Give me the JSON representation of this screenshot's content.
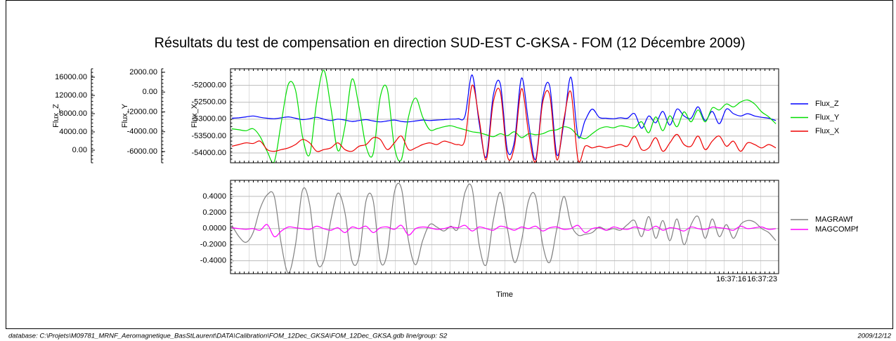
{
  "chart_data": [
    {
      "type": "line",
      "title": "Résultats du test de compensation en direction SUD-EST C-GKSA - FOM (12 Décembre 2009)",
      "series": [
        {
          "name": "Flux_Z",
          "color": "#0000ff",
          "axis_label": "Flux_Z",
          "ylim": [
            -2770,
            17850
          ],
          "yticks": [
            {
              "value": 16000,
              "label": "16000.00"
            },
            {
              "value": 12000,
              "label": "12000.00"
            },
            {
              "value": 8000,
              "label": "8000.00"
            },
            {
              "value": 4000,
              "label": "4000.00"
            },
            {
              "value": 0,
              "label": "0.00"
            }
          ],
          "values": [
            7000,
            7100,
            7300,
            7500,
            7200,
            7000,
            6900,
            7100,
            7300,
            7000,
            6700,
            6900,
            7200,
            6800,
            6500,
            6800,
            6600,
            6300,
            6500,
            6700,
            6400,
            6200,
            6400,
            6600,
            6300,
            6200,
            6400,
            6600,
            6500,
            6600,
            6700,
            6800,
            6900,
            7500,
            16500,
            6000,
            -1500,
            12000,
            14500,
            0,
            2000,
            15800,
            6000,
            -2000,
            11500,
            14000,
            -1000,
            6000,
            16000,
            3000,
            6500,
            9000,
            7200,
            7000,
            6900,
            7100,
            7000,
            8000,
            4800,
            7500,
            6000,
            8500,
            5500,
            9000,
            7500,
            7000,
            9500,
            6500,
            8500,
            5800,
            9000,
            8000,
            7500,
            8000,
            7500,
            7200,
            7000,
            6500
          ]
        },
        {
          "name": "Flux_Y",
          "color": "#00dd00",
          "axis_label": "Flux_Y",
          "ylim": [
            -7130,
            2350
          ],
          "yticks": [
            {
              "value": 2000,
              "label": "2000.00"
            },
            {
              "value": 0,
              "label": "0.00"
            },
            {
              "value": -2000,
              "label": "-2000.00"
            },
            {
              "value": -4000,
              "label": "-4000.00"
            },
            {
              "value": -6000,
              "label": "-6000.00"
            }
          ],
          "values": [
            -3700,
            -3800,
            -3900,
            -3700,
            -4500,
            -6000,
            -7000,
            -3000,
            800,
            200,
            -4500,
            -6300,
            -1000,
            2200,
            -1500,
            -5900,
            -3500,
            1300,
            -1500,
            -5500,
            -6200,
            -500,
            300,
            -5500,
            -6800,
            -2500,
            -600,
            -2500,
            -3800,
            -3700,
            -3500,
            -3400,
            -3600,
            -3800,
            -4000,
            -4100,
            -4300,
            -4500,
            -4200,
            -4400,
            -4000,
            -4600,
            -4200,
            -4300,
            -4200,
            -3900,
            -3800,
            -3500,
            -3700,
            -4400,
            -4700,
            -4200,
            -3700,
            -3500,
            -3600,
            -3400,
            -3500,
            -3600,
            -3000,
            -4100,
            -2500,
            -3900,
            -2400,
            -3500,
            -2000,
            -3000,
            -1800,
            -3000,
            -1600,
            -1800,
            -1200,
            -1500,
            -1000,
            -800,
            -1200,
            -2000,
            -2500,
            -3200
          ]
        },
        {
          "name": "Flux_X",
          "color": "#ee0000",
          "axis_label": "Flux_X",
          "ylim": [
            -54290,
            -51510
          ],
          "grid": true,
          "yticks": [
            {
              "value": -52000,
              "label": "-52000.00"
            },
            {
              "value": -52500,
              "label": "-52500.00"
            },
            {
              "value": -53000,
              "label": "-53000.00"
            },
            {
              "value": -53500,
              "label": "-53500.00"
            },
            {
              "value": -54000,
              "label": "-54000.00"
            }
          ],
          "values": [
            -53800,
            -53750,
            -53700,
            -53720,
            -53650,
            -53900,
            -53950,
            -53900,
            -53850,
            -53750,
            -53600,
            -53700,
            -53950,
            -53900,
            -53850,
            -53700,
            -53900,
            -53950,
            -53800,
            -53750,
            -53550,
            -53600,
            -53900,
            -53700,
            -53500,
            -53900,
            -53850,
            -53750,
            -53700,
            -53750,
            -53650,
            -53700,
            -53750,
            -53600,
            -52000,
            -53000,
            -54200,
            -52500,
            -52200,
            -54100,
            -53800,
            -52100,
            -53400,
            -54250,
            -52500,
            -52300,
            -54200,
            -53000,
            -52200,
            -54200,
            -53800,
            -53850,
            -53800,
            -53850,
            -53800,
            -53750,
            -53800,
            -53500,
            -53900,
            -53850,
            -53550,
            -53950,
            -53700,
            -53450,
            -53750,
            -53800,
            -53500,
            -53900,
            -53650,
            -53500,
            -53800,
            -53650,
            -53950,
            -53700,
            -53750,
            -53850,
            -53750,
            -53850
          ]
        }
      ]
    },
    {
      "type": "line",
      "xlabel": "Time",
      "xtick_labels": [
        "16:37:16",
        "16:37:23"
      ],
      "ylim": [
        -0.56,
        0.6
      ],
      "grid": true,
      "yticks": [
        {
          "value": 0.4,
          "label": "0.4000"
        },
        {
          "value": 0.2,
          "label": "0.2000"
        },
        {
          "value": 0,
          "label": "0.0000"
        },
        {
          "value": -0.2,
          "label": "-0.2000"
        },
        {
          "value": -0.4,
          "label": "-0.4000"
        }
      ],
      "series": [
        {
          "name": "MAGRAWf",
          "color": "#808080",
          "values": [
            0.04,
            -0.1,
            -0.17,
            -0.05,
            0.25,
            0.42,
            0.4,
            -0.2,
            -0.55,
            -0.2,
            0.48,
            0.3,
            -0.4,
            -0.4,
            0.1,
            0.44,
            0.2,
            -0.4,
            -0.35,
            0.35,
            0.35,
            -0.4,
            -0.3,
            0.45,
            0.5,
            -0.15,
            -0.45,
            -0.15,
            0.05,
            0.02,
            -0.03,
            0.03,
            0.0,
            0.45,
            0.5,
            -0.2,
            -0.45,
            0.1,
            0.45,
            0.0,
            -0.42,
            -0.15,
            0.35,
            0.4,
            -0.2,
            -0.42,
            0.0,
            0.4,
            0.05,
            -0.08,
            -0.07,
            -0.05,
            0.02,
            -0.02,
            0.0,
            -0.02,
            0.05,
            0.1,
            -0.1,
            0.15,
            -0.12,
            0.1,
            -0.15,
            0.12,
            -0.2,
            0.05,
            0.15,
            -0.12,
            0.12,
            -0.1,
            0.05,
            -0.12,
            0.05,
            0.1,
            0.08,
            0.0,
            -0.05,
            -0.15
          ]
        },
        {
          "name": "MAGCOMPf",
          "color": "#ff00ff",
          "values": [
            0.01,
            0.0,
            -0.01,
            0.0,
            -0.02,
            0.05,
            -0.1,
            -0.03,
            0.02,
            0.01,
            0.0,
            -0.01,
            0.03,
            0.0,
            -0.02,
            0.01,
            -0.05,
            0.02,
            0.0,
            0.03,
            -0.05,
            0.01,
            0.02,
            -0.01,
            0.04,
            -0.08,
            0.0,
            0.02,
            0.01,
            -0.01,
            0.0,
            0.02,
            0.01,
            0.04,
            -0.03,
            0.02,
            0.0,
            -0.02,
            0.03,
            0.01,
            -0.02,
            0.02,
            0.0,
            0.03,
            -0.03,
            0.01,
            0.02,
            -0.01,
            0.0,
            0.04,
            -0.05,
            0.0,
            0.01,
            -0.02,
            0.02,
            0.0,
            -0.01,
            0.02,
            0.0,
            -0.02,
            0.03,
            -0.02,
            0.01,
            0.0,
            -0.03,
            0.02,
            0.0,
            -0.01,
            0.02,
            0.01,
            0.0,
            -0.02,
            0.03,
            0.0,
            0.01,
            0.02,
            -0.01,
            0.0
          ]
        }
      ]
    }
  ],
  "footer": {
    "left": "database: C:\\Projets\\M09781_MRNF_Aeromagnetique_BasStLaurent\\DATA\\Calibration\\FOM_12Dec_GKSA\\FOM_12Dec_GKSA.gdb line/group: S2",
    "right": "2009/12/12"
  }
}
